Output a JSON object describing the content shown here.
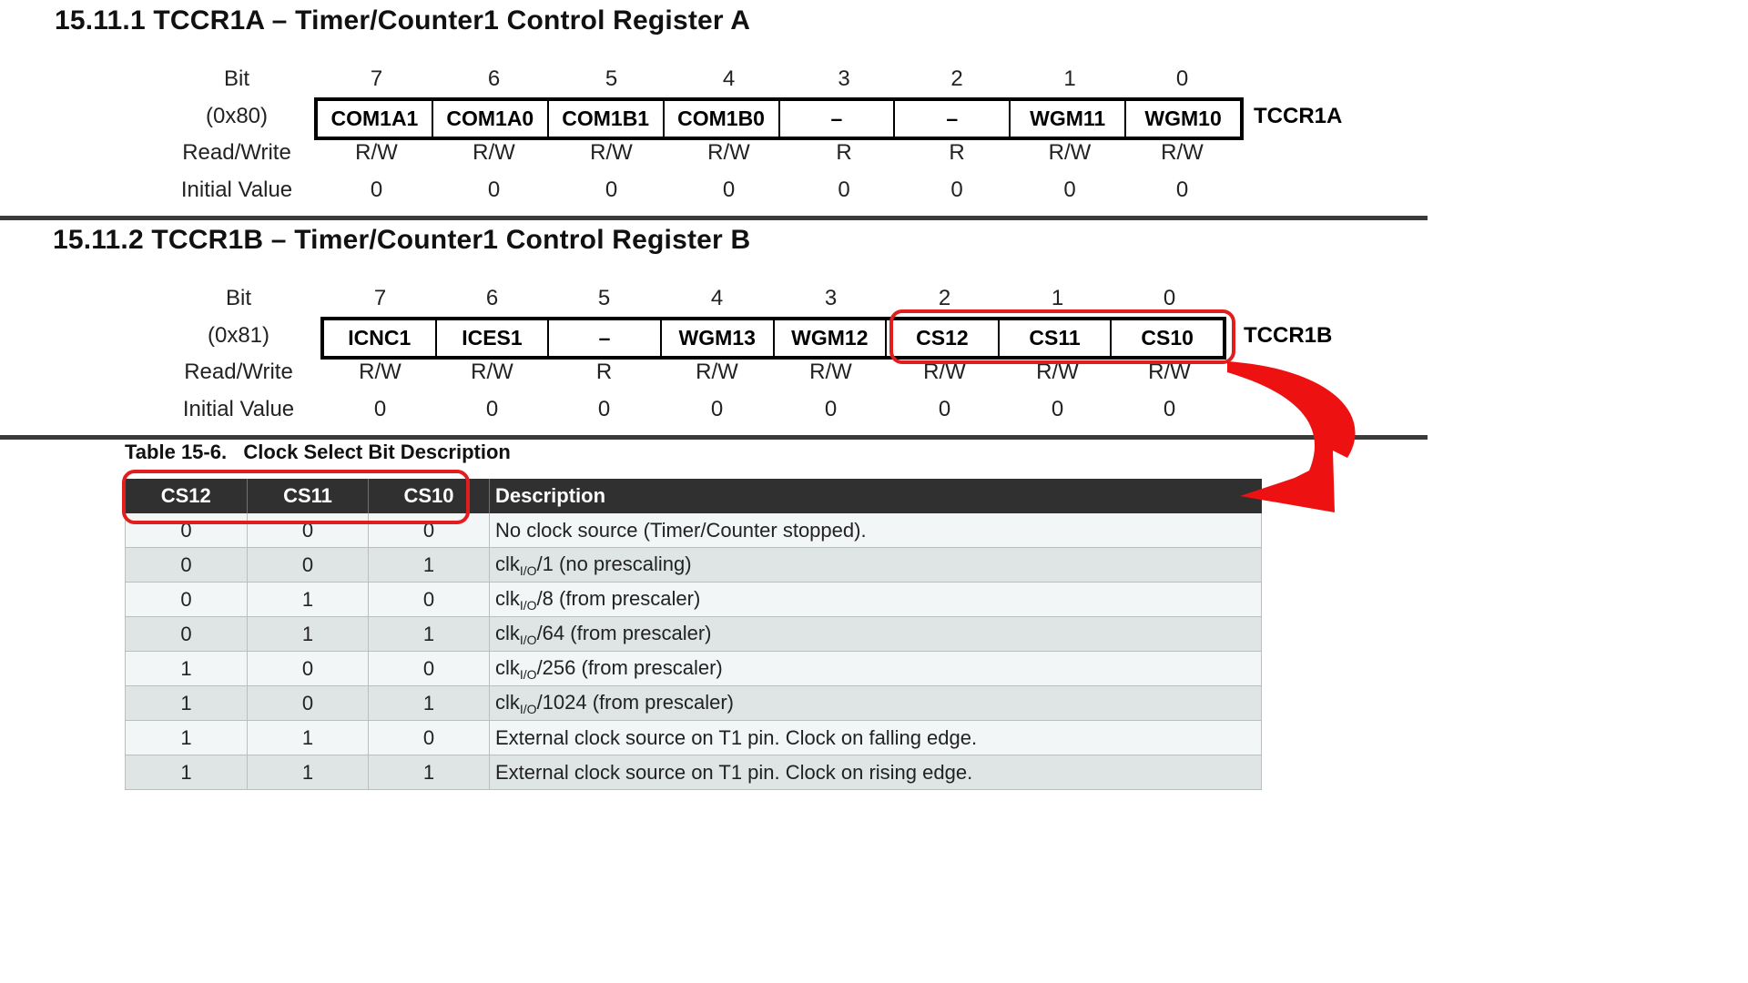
{
  "sections": [
    {
      "title": "15.11.1 TCCR1A – Timer/Counter1 Control Register A",
      "register_name": "TCCR1A",
      "address": "(0x80)",
      "row_labels": [
        "Bit",
        "Read/Write",
        "Initial Value"
      ],
      "bits": [
        {
          "index": "7",
          "name": "COM1A1",
          "rw": "R/W",
          "init": "0"
        },
        {
          "index": "6",
          "name": "COM1A0",
          "rw": "R/W",
          "init": "0"
        },
        {
          "index": "5",
          "name": "COM1B1",
          "rw": "R/W",
          "init": "0"
        },
        {
          "index": "4",
          "name": "COM1B0",
          "rw": "R/W",
          "init": "0"
        },
        {
          "index": "3",
          "name": "–",
          "rw": "R",
          "init": "0"
        },
        {
          "index": "2",
          "name": "–",
          "rw": "R",
          "init": "0"
        },
        {
          "index": "1",
          "name": "WGM11",
          "rw": "R/W",
          "init": "0"
        },
        {
          "index": "0",
          "name": "WGM10",
          "rw": "R/W",
          "init": "0"
        }
      ]
    },
    {
      "title": "15.11.2 TCCR1B – Timer/Counter1 Control Register B",
      "register_name": "TCCR1B",
      "address": "(0x81)",
      "row_labels": [
        "Bit",
        "Read/Write",
        "Initial Value"
      ],
      "bits": [
        {
          "index": "7",
          "name": "ICNC1",
          "rw": "R/W",
          "init": "0"
        },
        {
          "index": "6",
          "name": "ICES1",
          "rw": "R/W",
          "init": "0"
        },
        {
          "index": "5",
          "name": "–",
          "rw": "R",
          "init": "0"
        },
        {
          "index": "4",
          "name": "WGM13",
          "rw": "R/W",
          "init": "0"
        },
        {
          "index": "3",
          "name": "WGM12",
          "rw": "R/W",
          "init": "0"
        },
        {
          "index": "2",
          "name": "CS12",
          "rw": "R/W",
          "init": "0"
        },
        {
          "index": "1",
          "name": "CS11",
          "rw": "R/W",
          "init": "0"
        },
        {
          "index": "0",
          "name": "CS10",
          "rw": "R/W",
          "init": "0"
        }
      ]
    }
  ],
  "table": {
    "caption": "Table 15-6.   Clock Select Bit Description",
    "headers": [
      "CS12",
      "CS11",
      "CS10",
      "Description"
    ],
    "rows": [
      {
        "cs12": "0",
        "cs11": "0",
        "cs10": "0",
        "desc": "No clock source (Timer/Counter stopped)."
      },
      {
        "cs12": "0",
        "cs11": "0",
        "cs10": "1",
        "clk": "clk",
        "sub": "I/O",
        "desc_rest": "/1 (no prescaling)"
      },
      {
        "cs12": "0",
        "cs11": "1",
        "cs10": "0",
        "clk": "clk",
        "sub": "I/O",
        "desc_rest": "/8 (from prescaler)"
      },
      {
        "cs12": "0",
        "cs11": "1",
        "cs10": "1",
        "clk": "clk",
        "sub": "I/O",
        "desc_rest": "/64 (from prescaler)"
      },
      {
        "cs12": "1",
        "cs11": "0",
        "cs10": "0",
        "clk": "clk",
        "sub": "I/O",
        "desc_rest": "/256 (from prescaler)"
      },
      {
        "cs12": "1",
        "cs11": "0",
        "cs10": "1",
        "clk": "clk",
        "sub": "I/O",
        "desc_rest": "/1024 (from prescaler)"
      },
      {
        "cs12": "1",
        "cs11": "1",
        "cs10": "0",
        "desc": "External clock source on T1 pin. Clock on falling edge."
      },
      {
        "cs12": "1",
        "cs11": "1",
        "cs10": "1",
        "desc": "External clock source on T1 pin. Clock on rising edge."
      }
    ]
  },
  "annotations": {
    "highlight_color": "#e21d1d",
    "arrow_color": "#ee1111"
  }
}
